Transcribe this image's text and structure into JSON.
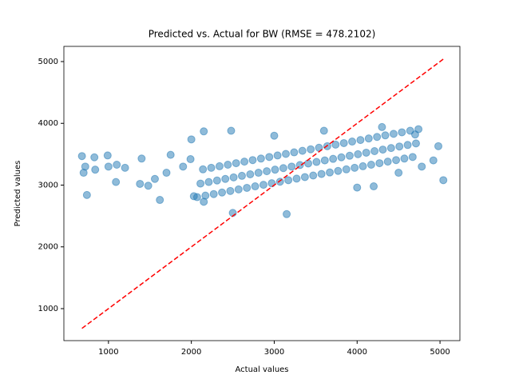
{
  "chart_data": {
    "type": "scatter",
    "title": "Predicted vs. Actual for BW (RMSE = 478.2102)",
    "x_label": "Actual values",
    "y_label": "Predicted values",
    "xlim": [
      462,
      5240
    ],
    "ylim": [
      482,
      5246
    ],
    "xticks": [
      1000,
      2000,
      3000,
      4000,
      5000
    ],
    "yticks": [
      1000,
      2000,
      3000,
      4000,
      5000
    ],
    "series": [
      {
        "color": "#1f77b4",
        "x": [
          680,
          720,
          740,
          700,
          830,
          840,
          990,
          1000,
          1090,
          1100,
          1200,
          1380,
          1400,
          1480,
          1560,
          1620,
          1700,
          1750,
          1900,
          1990,
          2000,
          2030,
          2150,
          2150,
          2480,
          2500,
          3150,
          3000,
          3600,
          4000,
          4300,
          4700,
          4780,
          4920,
          4980,
          5040,
          4500,
          4200,
          2070,
          2110,
          2140,
          2170,
          2210,
          2240,
          2270,
          2310,
          2340,
          2370,
          2410,
          2440,
          2470,
          2510,
          2540,
          2570,
          2610,
          2640,
          2670,
          2710,
          2740,
          2770,
          2810,
          2840,
          2870,
          2910,
          2940,
          2970,
          3010,
          3040,
          3070,
          3110,
          3140,
          3170,
          3210,
          3240,
          3270,
          3310,
          3340,
          3370,
          3410,
          3440,
          3470,
          3510,
          3540,
          3570,
          3610,
          3640,
          3670,
          3710,
          3740,
          3770,
          3810,
          3840,
          3870,
          3910,
          3940,
          3970,
          4010,
          4040,
          4070,
          4110,
          4140,
          4170,
          4210,
          4240,
          4270,
          4310,
          4340,
          4370,
          4410,
          4440,
          4470,
          4510,
          4540,
          4570,
          4610,
          4640,
          4670,
          4710,
          4740
        ],
        "values": [
          3470,
          3300,
          2840,
          3200,
          3450,
          3250,
          3480,
          3300,
          3050,
          3330,
          3280,
          3020,
          3430,
          2990,
          3100,
          2760,
          3200,
          3490,
          3300,
          3420,
          3740,
          2820,
          3870,
          2730,
          3880,
          2550,
          2530,
          3800,
          3880,
          2960,
          3940,
          3820,
          3300,
          3400,
          3630,
          3080,
          3200,
          2980,
          2805,
          3025,
          3255,
          2830,
          3050,
          3280,
          2855,
          3075,
          3305,
          2880,
          3100,
          3330,
          2905,
          3125,
          3355,
          2930,
          3150,
          3380,
          2955,
          3175,
          3405,
          2980,
          3200,
          3430,
          3005,
          3225,
          3455,
          3030,
          3250,
          3480,
          3055,
          3275,
          3505,
          3080,
          3300,
          3530,
          3105,
          3325,
          3555,
          3130,
          3350,
          3580,
          3155,
          3375,
          3605,
          3180,
          3400,
          3630,
          3205,
          3425,
          3655,
          3230,
          3450,
          3680,
          3255,
          3475,
          3705,
          3280,
          3500,
          3730,
          3305,
          3525,
          3755,
          3330,
          3550,
          3780,
          3355,
          3575,
          3805,
          3380,
          3600,
          3830,
          3405,
          3625,
          3855,
          3430,
          3650,
          3880,
          3455,
          3675,
          3905
        ]
      }
    ],
    "line": {
      "x": [
        680,
        5040
      ],
      "values": [
        680,
        5040
      ],
      "color": "red",
      "dashed": true
    }
  }
}
